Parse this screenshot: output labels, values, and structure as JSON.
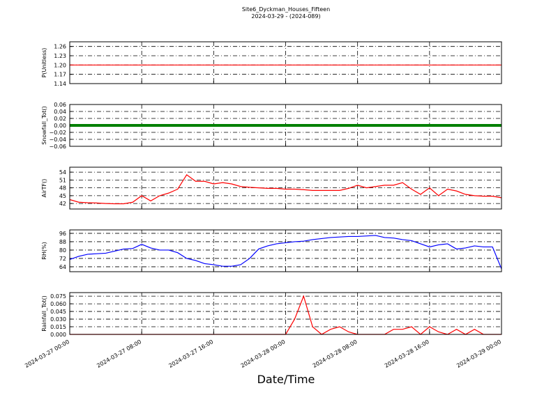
{
  "chart_data": [
    {
      "type": "line",
      "title": "Site6_Dyckman_Houses_Fifteen",
      "subtitle": "2024-03-29 - (2024-089)",
      "ylabel": "P(Unitless)",
      "color": "#ff0000",
      "grid": true,
      "ylim": [
        1.14,
        1.275
      ],
      "yticks": [
        1.14,
        1.17,
        {
          "value": 1.2,
          "label": "1.20"
        },
        1.23,
        1.26
      ],
      "values": [
        1.2,
        1.2,
        1.2,
        1.2,
        1.2,
        1.2,
        1.2,
        1.2,
        1.2,
        1.2,
        1.2,
        1.2,
        1.2,
        1.2,
        1.2,
        1.2,
        1.2,
        1.2,
        1.2,
        1.2,
        1.2,
        1.2,
        1.2,
        1.2,
        1.2,
        1.2,
        1.2,
        1.2,
        1.2,
        1.2,
        1.2,
        1.2,
        1.2,
        1.2,
        1.2,
        1.2,
        1.2,
        1.2,
        1.2,
        1.2,
        1.2,
        1.2,
        1.2,
        1.2,
        1.2,
        1.2,
        1.2,
        1.2,
        1.2
      ]
    },
    {
      "type": "line",
      "ylabel": "Snowfall_Tot()",
      "color": "#008000",
      "grid": true,
      "ylim": [
        -0.06,
        0.06
      ],
      "yticks": [
        {
          "value": -0.06,
          "label": "−0.06"
        },
        {
          "value": -0.04,
          "label": "−0.04"
        },
        {
          "value": -0.02,
          "label": "−0.02"
        },
        {
          "value": 0,
          "label": "0.00"
        },
        0.02,
        0.04,
        0.06
      ],
      "values": [
        0,
        0,
        0,
        0,
        0,
        0,
        0,
        0,
        0,
        0,
        0,
        0,
        0,
        0,
        0,
        0,
        0,
        0,
        0,
        0,
        0,
        0,
        0,
        0,
        0,
        0,
        0,
        0,
        0,
        0,
        0,
        0,
        0,
        0,
        0,
        0,
        0,
        0,
        0,
        0,
        0,
        0,
        0,
        0,
        0,
        0,
        0,
        0,
        0
      ]
    },
    {
      "type": "line",
      "ylabel": "AirTF()",
      "color": "#ff0000",
      "grid": true,
      "ylim": [
        39.9,
        55.9
      ],
      "yticks": [
        42,
        45,
        48,
        51,
        54
      ],
      "values": [
        43.5,
        42.5,
        42.3,
        42.2,
        42,
        41.9,
        41.9,
        42.5,
        45,
        43,
        45,
        46,
        47.5,
        53,
        50.5,
        50.5,
        49.5,
        50,
        49.5,
        48.5,
        48.2,
        48,
        47.8,
        47.8,
        47.5,
        47.5,
        47.3,
        47,
        47,
        47,
        47,
        47.8,
        49,
        48,
        48.5,
        49,
        49,
        50,
        47.5,
        45.5,
        48,
        45,
        47.5,
        46.8,
        45.5,
        45,
        44.8,
        44.8,
        44.2
      ]
    },
    {
      "type": "line",
      "ylabel": "RH(%)",
      "color": "#0000ff",
      "grid": true,
      "ylim": [
        59.3,
        99.3
      ],
      "yticks": [
        64,
        72,
        80,
        88,
        96
      ],
      "values": [
        71,
        74,
        76,
        76.5,
        77,
        79,
        81,
        81.5,
        85.5,
        82,
        80,
        80,
        77.5,
        72,
        70,
        67,
        66,
        64.5,
        64.5,
        66,
        72,
        81,
        84,
        86,
        87,
        88,
        88.5,
        90,
        91,
        92,
        92.5,
        93,
        93,
        93.5,
        94,
        92,
        91.5,
        90,
        89,
        86,
        83,
        85,
        86,
        81,
        82,
        84,
        83,
        83,
        62
      ]
    },
    {
      "type": "line",
      "ylabel": "Rainfall_Tot()",
      "xlabel": "Date/Time",
      "color": "#ff0000",
      "grid": true,
      "ylim": [
        0,
        0.082
      ],
      "yticks": [
        {
          "value": 0,
          "label": "0.000"
        },
        0.015,
        {
          "value": 0.03,
          "label": "0.030"
        },
        0.045,
        {
          "value": 0.06,
          "label": "0.060"
        },
        0.075
      ],
      "x": [
        "2024-03-27 00:00",
        "2024-03-27 01:00",
        "2024-03-27 02:00",
        "2024-03-27 03:00",
        "2024-03-27 04:00",
        "2024-03-27 05:00",
        "2024-03-27 06:00",
        "2024-03-27 07:00",
        "2024-03-27 08:00",
        "2024-03-27 09:00",
        "2024-03-27 10:00",
        "2024-03-27 11:00",
        "2024-03-27 12:00",
        "2024-03-27 13:00",
        "2024-03-27 14:00",
        "2024-03-27 15:00",
        "2024-03-27 16:00",
        "2024-03-27 17:00",
        "2024-03-27 18:00",
        "2024-03-27 19:00",
        "2024-03-27 20:00",
        "2024-03-27 21:00",
        "2024-03-27 22:00",
        "2024-03-27 23:00",
        "2024-03-28 00:00",
        "2024-03-28 01:00",
        "2024-03-28 02:00",
        "2024-03-28 03:00",
        "2024-03-28 04:00",
        "2024-03-28 05:00",
        "2024-03-28 06:00",
        "2024-03-28 07:00",
        "2024-03-28 08:00",
        "2024-03-28 09:00",
        "2024-03-28 10:00",
        "2024-03-28 11:00",
        "2024-03-28 12:00",
        "2024-03-28 13:00",
        "2024-03-28 14:00",
        "2024-03-28 15:00",
        "2024-03-28 16:00",
        "2024-03-28 17:00",
        "2024-03-28 18:00",
        "2024-03-28 19:00",
        "2024-03-28 20:00",
        "2024-03-28 21:00",
        "2024-03-28 22:00",
        "2024-03-28 23:00",
        "2024-03-29 00:00"
      ],
      "xlim": [
        "2024-03-27 00:00",
        "2024-03-29 00:00"
      ],
      "xticks": [
        "2024-03-27 00:00",
        "2024-03-27 08:00",
        "2024-03-27 16:00",
        "2024-03-28 00:00",
        "2024-03-28 08:00",
        "2024-03-28 16:00",
        "2024-03-29 00:00"
      ],
      "values": [
        0,
        0,
        0,
        0,
        0,
        0,
        0,
        0,
        0,
        0,
        0,
        0,
        0,
        0,
        0,
        0,
        0,
        0,
        0,
        0,
        0,
        0,
        0,
        0,
        0,
        0.03,
        0.075,
        0.015,
        0,
        0.01,
        0.015,
        0.005,
        0,
        0,
        0,
        0,
        0.01,
        0.01,
        0.015,
        0,
        0.015,
        0.005,
        0,
        0.01,
        0,
        0.01,
        0,
        0,
        0
      ]
    }
  ]
}
